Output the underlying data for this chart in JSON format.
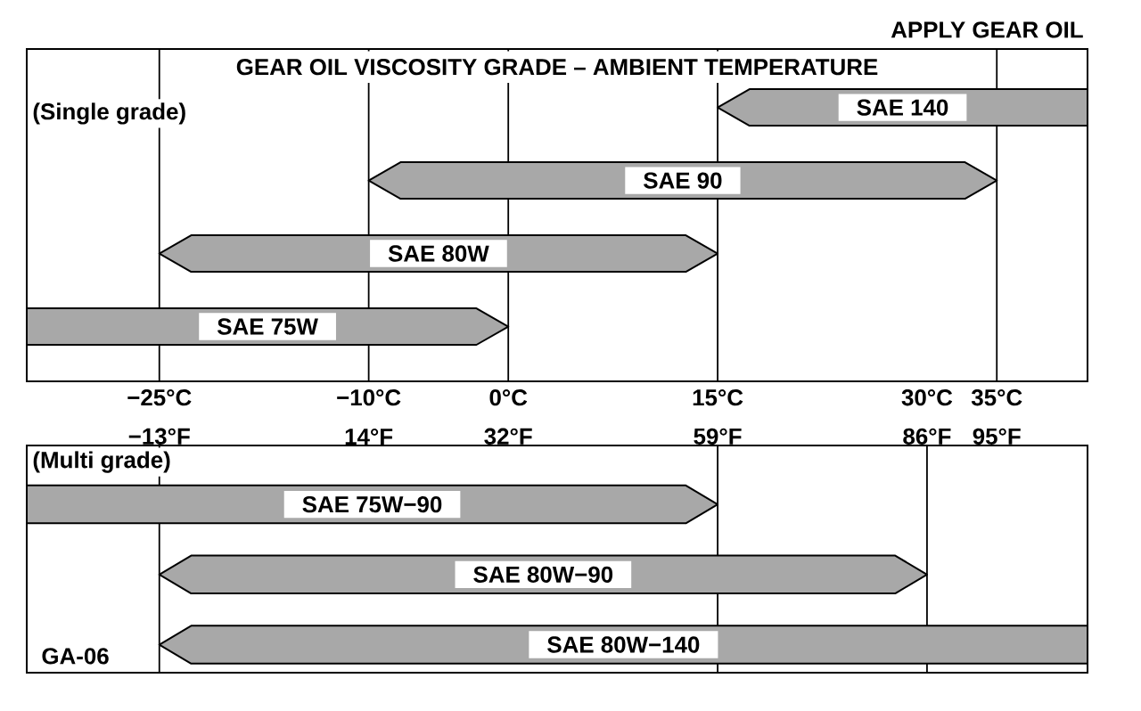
{
  "chart_data": [
    {
      "type": "bar",
      "orientation": "horizontal",
      "title": "GEAR OIL VISCOSITY GRADE – AMBIENT TEMPERATURE",
      "categories": [
        "SAE 140",
        "SAE 90",
        "SAE 80W",
        "SAE 75W"
      ],
      "base": [
        15,
        -10,
        -25,
        -34.5
      ],
      "values": [
        26.5,
        45,
        40,
        34.5
      ],
      "color": "#a8a8a8",
      "xlim": [
        -34.5,
        41.5
      ],
      "xticks": [
        {
          "value": -25,
          "label": "−25°C"
        },
        {
          "value": -10,
          "label": "−10°C"
        },
        {
          "value": 0,
          "label": "0°C"
        },
        {
          "value": 15,
          "label": "15°C"
        },
        {
          "value": 30,
          "label": "30°C"
        },
        {
          "value": 35,
          "label": "35°C"
        }
      ],
      "ref_lines": [
        {
          "axis": "x",
          "value": -25
        },
        {
          "axis": "x",
          "value": -10
        },
        {
          "axis": "x",
          "value": 0
        },
        {
          "axis": "x",
          "value": 15
        },
        {
          "axis": "x",
          "value": 35
        }
      ],
      "annotations": [
        "APPLY GEAR OIL",
        "(Single grade)"
      ]
    },
    {
      "type": "bar",
      "orientation": "horizontal",
      "title": "(Multi grade)",
      "categories": [
        "SAE 75W−90",
        "SAE 80W−90",
        "SAE 80W−140"
      ],
      "base": [
        -30.1,
        -13,
        -13
      ],
      "values": [
        89.1,
        99,
        119.7
      ],
      "color": "#a8a8a8",
      "xlim": [
        -30.1,
        106.7
      ],
      "xticks": [
        {
          "value": -13,
          "label": "−13°F"
        },
        {
          "value": 14,
          "label": "14°F"
        },
        {
          "value": 32,
          "label": "32°F"
        },
        {
          "value": 59,
          "label": "59°F"
        },
        {
          "value": 86,
          "label": "86°F"
        },
        {
          "value": 95,
          "label": "95°F"
        }
      ],
      "ref_lines": [
        {
          "axis": "x",
          "value": -13
        },
        {
          "axis": "x",
          "value": 59
        },
        {
          "axis": "x",
          "value": 86
        }
      ],
      "annotations": [
        "GA-06"
      ]
    }
  ]
}
